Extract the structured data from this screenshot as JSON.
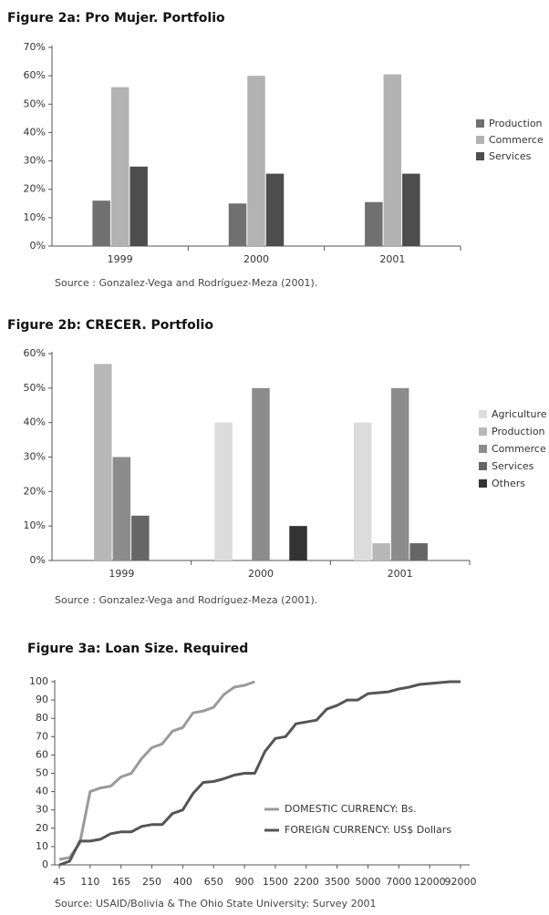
{
  "chart_data": [
    {
      "type": "bar",
      "title": "Figure 2a: Pro Mujer. Portfolio",
      "categories": [
        "1999",
        "2000",
        "2001"
      ],
      "series": [
        {
          "name": "Production",
          "color": "#707070",
          "values": [
            16,
            15,
            15.5
          ]
        },
        {
          "name": "Commerce",
          "color": "#b3b3b3",
          "values": [
            56,
            60,
            60.5
          ]
        },
        {
          "name": "Services",
          "color": "#4d4d4d",
          "values": [
            28,
            25.5,
            25.5
          ]
        }
      ],
      "ylim": [
        0,
        70
      ],
      "yticks": [
        {
          "value": 0,
          "label": "0%"
        },
        {
          "value": 10,
          "label": "10%"
        },
        {
          "value": 20,
          "label": "20%"
        },
        {
          "value": 30,
          "label": "30%"
        },
        {
          "value": 40,
          "label": "40%"
        },
        {
          "value": 50,
          "label": "50%"
        },
        {
          "value": 60,
          "label": "60%"
        },
        {
          "value": 70,
          "label": "70%"
        }
      ],
      "legend": "right",
      "source": "Source : Gonzalez-Vega and Rodríguez-Meza (2001)."
    },
    {
      "type": "bar",
      "title": "Figure 2b: CRECER. Portfolio",
      "categories": [
        "1999",
        "2000",
        "2001"
      ],
      "series": [
        {
          "name": "Agriculture",
          "color": "#dcdcdc",
          "values": [
            null,
            40,
            40
          ]
        },
        {
          "name": "Production",
          "color": "#b8b8b8",
          "values": [
            57,
            null,
            5
          ]
        },
        {
          "name": "Commerce",
          "color": "#8c8c8c",
          "values": [
            30,
            50,
            50
          ]
        },
        {
          "name": "Services",
          "color": "#666666",
          "values": [
            13,
            null,
            5
          ]
        },
        {
          "name": "Others",
          "color": "#333333",
          "values": [
            null,
            10,
            null
          ]
        }
      ],
      "ylim": [
        0,
        60
      ],
      "yticks": [
        {
          "value": 0,
          "label": "0%"
        },
        {
          "value": 10,
          "label": "10%"
        },
        {
          "value": 20,
          "label": "20%"
        },
        {
          "value": 30,
          "label": "30%"
        },
        {
          "value": 40,
          "label": "40%"
        },
        {
          "value": 50,
          "label": "50%"
        },
        {
          "value": 60,
          "label": "60%"
        }
      ],
      "legend": "right",
      "source": "Source : Gonzalez-Vega and Rodríguez-Meza (2001)."
    },
    {
      "type": "line",
      "title": "Figure 3a: Loan Size. Required",
      "categories": [
        "45",
        null,
        null,
        "110",
        null,
        null,
        "165",
        null,
        null,
        "250",
        null,
        null,
        "400",
        null,
        null,
        "650",
        null,
        null,
        "900",
        null,
        null,
        "1500",
        null,
        null,
        "2200",
        null,
        null,
        "3500",
        null,
        null,
        "5000",
        null,
        null,
        "7000",
        null,
        null,
        "12000",
        null,
        null,
        "92000"
      ],
      "series": [
        {
          "name": "DOMESTIC CURRENCY: Bs.",
          "color": "#9a9a9a",
          "values": [
            3,
            4,
            12,
            40,
            42,
            43,
            48,
            50,
            58,
            64,
            66,
            73,
            75,
            83,
            84,
            86,
            93,
            97,
            98,
            100,
            null,
            null,
            null,
            null,
            null,
            null,
            null,
            null,
            null,
            null,
            null,
            null,
            null,
            null,
            null,
            null,
            null,
            null,
            null,
            null
          ]
        },
        {
          "name": "FOREIGN CURRENCY: US$ Dollars",
          "color": "#555555",
          "values": [
            0,
            2,
            13,
            13,
            14,
            17,
            18,
            18,
            21,
            22,
            22,
            28,
            30,
            39,
            45,
            45.5,
            47,
            49,
            50,
            50,
            62,
            69,
            70,
            77,
            78,
            79,
            85,
            87,
            90,
            90,
            93.5,
            94,
            94.5,
            96,
            97,
            98.5,
            99,
            99.5,
            100,
            100
          ]
        }
      ],
      "ylim": [
        0,
        100
      ],
      "yticks": [
        0,
        10,
        20,
        30,
        40,
        50,
        60,
        70,
        80,
        90,
        100
      ],
      "legend": "lower right",
      "source": "Source: USAID/Bolivia & The Ohio State University: Survey 2001"
    }
  ]
}
